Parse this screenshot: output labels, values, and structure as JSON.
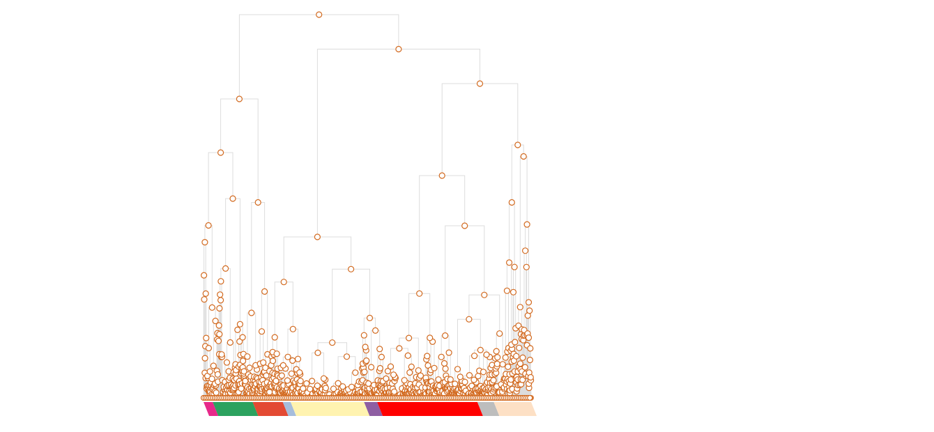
{
  "chart_data": {
    "type": "dendrogram",
    "title": "",
    "xlabel": "",
    "ylabel": "",
    "axes_visible": false,
    "grid": false,
    "legend": "none",
    "node_color": "#d2691e",
    "link_color": "#dcdcdc",
    "node_fill": "#ffffff",
    "height_range": [
      0,
      1
    ],
    "leaf_count_estimate": 1060,
    "top_merges": [
      {
        "id": "root",
        "height": 1.0,
        "children": [
          "A",
          "B"
        ]
      },
      {
        "id": "A",
        "height": 0.78,
        "children": [
          "A1",
          "A2"
        ]
      },
      {
        "id": "A1",
        "height": 0.64,
        "children": [
          "A1a",
          "A1b"
        ]
      },
      {
        "id": "A1a",
        "height": 0.45
      },
      {
        "id": "A1b",
        "height": 0.52
      },
      {
        "id": "A2",
        "height": 0.51
      },
      {
        "id": "B",
        "height": 0.91,
        "children": [
          "B1",
          "C"
        ]
      },
      {
        "id": "B1",
        "height": 0.42
      },
      {
        "id": "C",
        "height": 0.82,
        "children": [
          "C1",
          "D"
        ]
      },
      {
        "id": "C1",
        "height": 0.58
      },
      {
        "id": "D",
        "height": 0.66,
        "children": [
          "D1",
          "D2"
        ]
      },
      {
        "id": "D1",
        "height": 0.51
      },
      {
        "id": "D2",
        "height": 0.63
      }
    ],
    "leaf_groups": [
      {
        "color": "#e7298a",
        "leaf_share": 0.028
      },
      {
        "color": "#2ca25f",
        "leaf_share": 0.122
      },
      {
        "color": "#e34a33",
        "leaf_share": 0.092
      },
      {
        "color": "#a6bddb",
        "leaf_share": 0.024
      },
      {
        "color": "#fff3b0",
        "leaf_share": 0.224
      },
      {
        "color": "#8e5ea2",
        "leaf_share": 0.04
      },
      {
        "color": "#ff0000",
        "leaf_share": 0.306
      },
      {
        "color": "#bdbdbd",
        "leaf_share": 0.05
      },
      {
        "color": "#fde0c5",
        "leaf_share": 0.114
      }
    ]
  }
}
